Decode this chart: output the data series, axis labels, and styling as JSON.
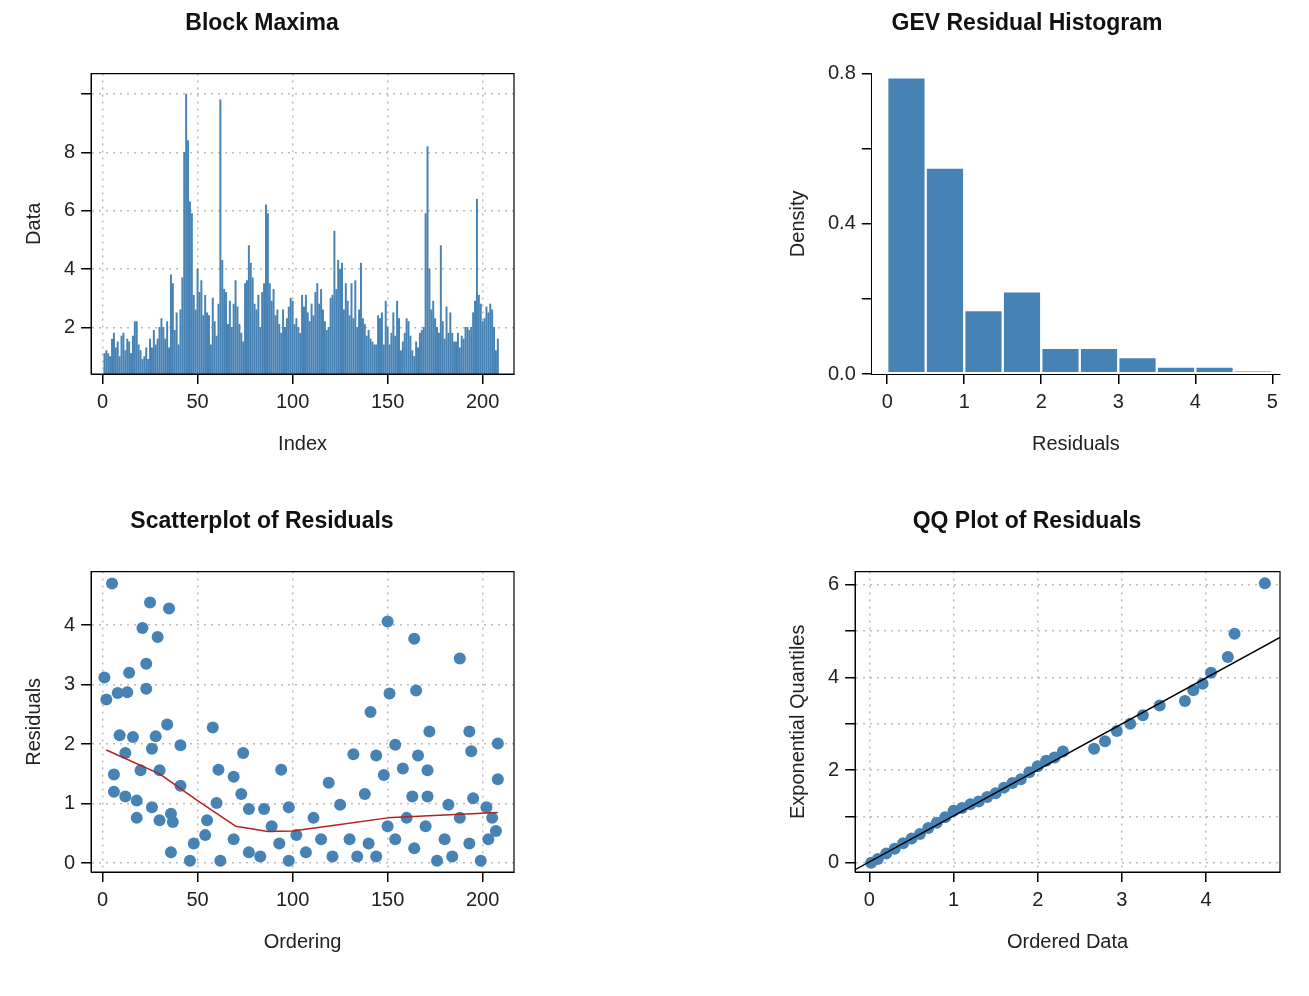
{
  "chart_data": [
    {
      "type": "bar",
      "title": "Block Maxima",
      "xlabel": "Index",
      "ylabel": "Data",
      "color": "#4682b4",
      "grid": true,
      "xlim": [
        -6,
        216.5
      ],
      "xticks": [
        0,
        50,
        100,
        150,
        200
      ],
      "ylim": [
        0.4,
        10.7
      ],
      "yticks": [
        2,
        4,
        6,
        8,
        {
          "value": 10,
          "label": null
        }
      ],
      "x": [
        1,
        2,
        3,
        4,
        5,
        6,
        7,
        8,
        9,
        10,
        11,
        12,
        13,
        14,
        15,
        16,
        17,
        18,
        19,
        20,
        21,
        22,
        23,
        24,
        25,
        26,
        27,
        28,
        29,
        30,
        31,
        32,
        33,
        34,
        35,
        36,
        37,
        38,
        39,
        40,
        41,
        42,
        43,
        44,
        45,
        46,
        47,
        48,
        49,
        50,
        51,
        52,
        53,
        54,
        55,
        56,
        57,
        58,
        59,
        60,
        61,
        62,
        63,
        64,
        65,
        66,
        67,
        68,
        69,
        70,
        71,
        72,
        73,
        74,
        75,
        76,
        77,
        78,
        79,
        80,
        81,
        82,
        83,
        84,
        85,
        86,
        87,
        88,
        89,
        90,
        91,
        92,
        93,
        94,
        95,
        96,
        97,
        98,
        99,
        100,
        101,
        102,
        103,
        104,
        105,
        106,
        107,
        108,
        109,
        110,
        111,
        112,
        113,
        114,
        115,
        116,
        117,
        118,
        119,
        120,
        121,
        122,
        123,
        124,
        125,
        126,
        127,
        128,
        129,
        130,
        131,
        132,
        133,
        134,
        135,
        136,
        137,
        138,
        139,
        140,
        141,
        142,
        143,
        144,
        145,
        146,
        147,
        148,
        149,
        150,
        151,
        152,
        153,
        154,
        155,
        156,
        157,
        158,
        159,
        160,
        161,
        162,
        163,
        164,
        165,
        166,
        167,
        168,
        169,
        170,
        171,
        172,
        173,
        174,
        175,
        176,
        177,
        178,
        179,
        180,
        181,
        182,
        183,
        184,
        185,
        186,
        187,
        188,
        189,
        190,
        191,
        192,
        193,
        194,
        195,
        196,
        197,
        198,
        199,
        200,
        201,
        202,
        203,
        204,
        205,
        206,
        207,
        208
      ],
      "values": [
        1.1,
        1.2,
        1.1,
        1.0,
        1.6,
        1.8,
        1.3,
        1.5,
        1.0,
        1.7,
        1.8,
        1.2,
        1.6,
        1.5,
        1.1,
        1.7,
        2.2,
        2.2,
        1.4,
        1.2,
        0.9,
        1.0,
        1.3,
        0.9,
        1.6,
        1.3,
        1.9,
        1.4,
        1.6,
        2.0,
        2.3,
        2.0,
        1.6,
        2.2,
        1.3,
        3.8,
        3.5,
        1.9,
        2.5,
        1.4,
        2.6,
        3.7,
        8.0,
        10.0,
        8.4,
        6.3,
        5.9,
        3.1,
        2.6,
        4.0,
        3.2,
        3.6,
        2.4,
        3.1,
        2.5,
        2.4,
        1.4,
        3.0,
        2.2,
        1.7,
        2.8,
        9.8,
        4.3,
        3.3,
        3.2,
        2.1,
        2.9,
        2.0,
        2.8,
        3.6,
        2.7,
        2.1,
        1.8,
        1.5,
        3.5,
        3.6,
        4.8,
        4.2,
        3.7,
        2.8,
        2.6,
        3.1,
        2.0,
        3.2,
        3.5,
        6.2,
        5.9,
        3.5,
        2.9,
        3.3,
        2.4,
        2.6,
        2.1,
        1.8,
        2.6,
        2.0,
        2.3,
        2.7,
        3.0,
        2.9,
        2.1,
        2.3,
        2.0,
        1.8,
        3.1,
        2.7,
        3.1,
        2.5,
        2.2,
        2.8,
        2.4,
        3.2,
        3.5,
        2.8,
        3.3,
        2.6,
        2.2,
        1.9,
        2.0,
        3.0,
        3.1,
        5.3,
        3.3,
        4.3,
        4.0,
        4.2,
        2.6,
        3.5,
        2.9,
        2.4,
        3.5,
        2.3,
        3.6,
        2.0,
        2.6,
        4.2,
        2.3,
        2.1,
        1.7,
        1.9,
        1.6,
        1.5,
        1.4,
        1.4,
        2.4,
        2.3,
        2.5,
        1.4,
        2.9,
        2.0,
        1.4,
        1.8,
        2.5,
        1.7,
        2.9,
        2.3,
        1.2,
        1.5,
        1.8,
        2.3,
        2.2,
        1.7,
        1.2,
        1.0,
        1.5,
        1.3,
        1.8,
        1.9,
        2.0,
        5.9,
        8.2,
        4.0,
        2.6,
        2.9,
        2.3,
        2.0,
        1.8,
        4.8,
        2.2,
        1.6,
        2.7,
        1.8,
        2.5,
        1.8,
        1.5,
        1.5,
        1.8,
        1.3,
        1.7,
        1.6,
        2.0,
        2.0,
        1.9,
        2.0,
        2.5,
        2.9,
        6.4,
        3.1,
        2.8,
        2.2,
        2.3,
        2.7,
        2.5,
        2.8,
        2.6,
        2.0,
        1.2,
        1.6
      ]
    },
    {
      "type": "histogram",
      "title": "GEV Residual Histogram",
      "xlabel": "Residuals",
      "ylabel": "Density",
      "color": "#4682b4",
      "bins": [
        0,
        0.5,
        1,
        1.5,
        2,
        2.5,
        3,
        3.5,
        4,
        4.5,
        5
      ],
      "values": [
        0.79,
        0.55,
        0.17,
        0.22,
        0.07,
        0.07,
        0.045,
        0.02,
        0.02,
        0.01
      ],
      "xlim": [
        -0.2,
        5.1
      ],
      "xticks": [
        0,
        1,
        2,
        3,
        4,
        5
      ],
      "ylim": [
        0,
        0.8
      ],
      "yticks": [
        {
          "value": 0,
          "label": "0.0"
        },
        {
          "value": 0.2,
          "label": null
        },
        {
          "value": 0.4,
          "label": "0.4"
        },
        {
          "value": 0.6,
          "label": null
        },
        {
          "value": 0.8,
          "label": "0.8"
        }
      ]
    },
    {
      "type": "scatter",
      "title": "Scatterplot of Residuals",
      "xlabel": "Ordering",
      "ylabel": "Residuals",
      "grid": true,
      "marker": "circle",
      "xlim": [
        -6,
        216.5
      ],
      "xticks": [
        0,
        50,
        100,
        150,
        200
      ],
      "ylim": [
        -0.15,
        4.9
      ],
      "yticks": [
        0,
        1,
        2,
        3,
        4
      ],
      "series": [
        {
          "color": "#4682b4",
          "x": [
            5,
            25,
            35,
            21,
            29,
            14,
            23,
            1,
            2,
            8,
            13,
            23,
            34,
            58,
            9,
            16,
            28,
            41,
            74,
            26,
            12,
            20,
            6,
            30,
            41,
            61,
            69,
            94,
            6,
            12,
            18,
            18,
            26,
            36,
            30,
            37,
            73,
            55,
            60,
            77,
            85,
            98,
            119,
            132,
            141,
            150,
            151,
            164,
            165,
            188,
            144,
            154,
            172,
            193,
            194,
            208,
            208,
            148,
            158,
            166,
            171,
            138,
            163,
            171,
            182,
            195,
            202,
            207,
            36,
            46,
            48,
            54,
            62,
            69,
            77,
            83,
            89,
            93,
            98,
            102,
            107,
            111,
            115,
            121,
            125,
            130,
            134,
            140,
            144,
            150,
            154,
            160,
            164,
            170,
            176,
            180,
            184,
            188,
            193,
            199,
            203,
            205
          ],
          "values": [
            4.7,
            4.38,
            4.28,
            3.95,
            3.8,
            3.2,
            3.35,
            3.12,
            2.75,
            2.86,
            2.87,
            2.93,
            2.33,
            2.28,
            2.15,
            2.12,
            2.13,
            1.98,
            1.85,
            1.92,
            1.85,
            1.56,
            1.49,
            1.56,
            1.3,
            1.57,
            1.45,
            1.57,
            1.2,
            1.12,
            1.05,
            0.76,
            0.94,
            0.83,
            0.72,
            0.69,
            1.16,
            0.72,
            1.01,
            0.91,
            0.91,
            0.94,
            1.35,
            1.83,
            2.54,
            4.06,
            2.85,
            3.77,
            2.9,
            3.44,
            1.81,
            1.99,
            2.21,
            2.21,
            1.88,
            2.01,
            1.41,
            1.48,
            1.59,
            1.81,
            1.56,
            1.16,
            1.12,
            1.12,
            0.98,
            1.09,
            0.94,
            0.54,
            0.18,
            0.04,
            0.33,
            0.47,
            0.04,
            0.4,
            0.18,
            0.11,
            0.62,
            0.33,
            0.04,
            0.47,
            0.18,
            0.76,
            0.4,
            0.11,
            0.98,
            0.4,
            0.11,
            0.33,
            0.11,
            0.62,
            0.4,
            0.76,
            0.25,
            0.62,
            0.04,
            0.4,
            0.11,
            0.76,
            0.33,
            0.04,
            0.4,
            0.76
          ]
        },
        {
          "type": "line",
          "color": "#b22222",
          "marker": "none",
          "x": [
            2,
            30,
            50,
            70,
            87,
            100,
            125,
            150,
            180,
            208
          ],
          "values": [
            1.9,
            1.5,
            1.05,
            0.62,
            0.53,
            0.54,
            0.65,
            0.76,
            0.81,
            0.85
          ]
        }
      ]
    },
    {
      "type": "scatter",
      "title": "QQ Plot of Residuals",
      "xlabel": "Ordered Data",
      "ylabel": "Exponential Quantiles",
      "grid": true,
      "marker": "circle",
      "xlim": [
        -0.17,
        4.88
      ],
      "xticks": [
        0,
        1,
        2,
        3,
        4
      ],
      "ylim": [
        -0.2,
        6.28
      ],
      "yticks": [
        0,
        {
          "value": 1,
          "label": null
        },
        2,
        {
          "value": 3,
          "label": null
        },
        4,
        {
          "value": 5,
          "label": null
        },
        6
      ],
      "series": [
        {
          "color": "#4682b4",
          "x": [
            0.02,
            0.1,
            0.2,
            0.3,
            0.4,
            0.5,
            0.6,
            0.7,
            0.8,
            0.9,
            1.0,
            1.1,
            1.2,
            1.3,
            1.4,
            1.5,
            1.6,
            1.7,
            1.8,
            1.9,
            2.0,
            2.1,
            2.2,
            2.3,
            2.67,
            2.8,
            2.94,
            3.1,
            3.25,
            3.45,
            3.75,
            3.85,
            3.96,
            4.06,
            4.26,
            4.34,
            4.7
          ],
          "values": [
            0.0,
            0.08,
            0.2,
            0.3,
            0.42,
            0.52,
            0.62,
            0.75,
            0.86,
            0.98,
            1.12,
            1.18,
            1.26,
            1.32,
            1.42,
            1.5,
            1.62,
            1.72,
            1.8,
            1.95,
            2.08,
            2.2,
            2.27,
            2.4,
            2.46,
            2.62,
            2.84,
            3.0,
            3.18,
            3.39,
            3.49,
            3.72,
            3.86,
            4.1,
            4.44,
            4.94,
            6.03
          ]
        },
        {
          "type": "line",
          "color": "#000000",
          "marker": "none",
          "x": [
            -0.17,
            4.88
          ],
          "values": [
            -0.15,
            4.86
          ]
        }
      ]
    }
  ]
}
